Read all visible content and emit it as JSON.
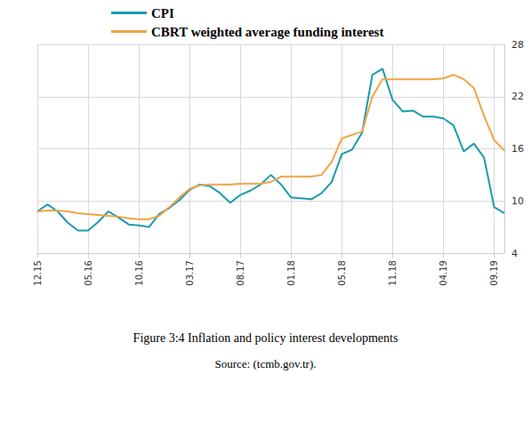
{
  "chart_data": {
    "type": "line",
    "title": "Figure 3:4 Inflation and policy interest developments",
    "subtitle": "Source: (tcmb.gov.tr).",
    "categories": [
      "12.15",
      null,
      null,
      null,
      null,
      "05.16",
      null,
      null,
      null,
      null,
      "10.16",
      null,
      null,
      null,
      null,
      "03.17",
      null,
      null,
      null,
      null,
      "08.17",
      null,
      null,
      null,
      null,
      "01.18",
      null,
      null,
      null,
      null,
      "05.18",
      null,
      null,
      null,
      null,
      "11.18",
      null,
      null,
      null,
      null,
      "04.19",
      null,
      null,
      null,
      null,
      "09.19",
      null
    ],
    "series": [
      {
        "name": "CPI",
        "color": "#1b9bb2",
        "values": [
          8.8,
          9.6,
          8.8,
          7.5,
          6.6,
          6.6,
          7.6,
          8.8,
          8.1,
          7.3,
          7.2,
          7.0,
          8.5,
          9.2,
          10.1,
          11.3,
          11.9,
          11.7,
          10.9,
          9.8,
          10.7,
          11.2,
          11.9,
          13.0,
          11.9,
          10.4,
          10.3,
          10.2,
          10.9,
          12.2,
          15.4,
          15.9,
          17.9,
          24.5,
          25.2,
          21.6,
          20.3,
          20.4,
          19.7,
          19.7,
          19.5,
          18.7,
          15.7,
          16.6,
          15.0,
          9.3,
          8.6
        ]
      },
      {
        "name": "CBRT weighted average funding interest",
        "color": "#f0a443",
        "values": [
          8.8,
          8.9,
          8.9,
          8.8,
          8.6,
          8.5,
          8.4,
          8.3,
          8.2,
          8.0,
          7.9,
          7.9,
          8.3,
          9.3,
          10.4,
          11.4,
          11.8,
          11.9,
          11.9,
          11.9,
          12.0,
          12.0,
          12.0,
          12.2,
          12.8,
          12.8,
          12.8,
          12.8,
          13.0,
          14.5,
          17.2,
          17.6,
          18.0,
          22.0,
          24.0,
          24.0,
          24.0,
          24.0,
          24.0,
          24.0,
          24.1,
          24.5,
          24.0,
          23.0,
          19.8,
          17.0,
          15.8
        ]
      }
    ],
    "ylim": [
      4,
      28
    ],
    "yticks": [
      4,
      10,
      16,
      22,
      28
    ],
    "grid": true,
    "legend": "top"
  }
}
